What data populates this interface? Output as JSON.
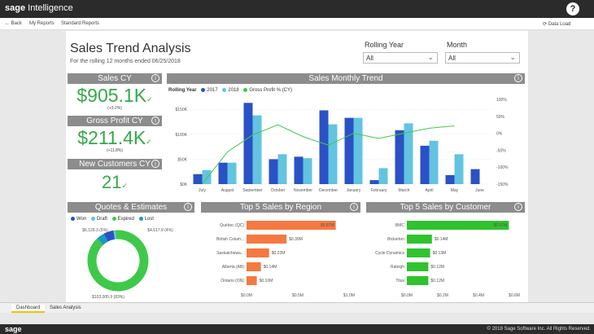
{
  "app": {
    "brand_sage": "sage",
    "brand_product": "Intelligence",
    "help": "?"
  },
  "nav": {
    "back": "← Back",
    "my_reports": "My Reports",
    "standard_reports": "Standard Reports",
    "data_load": "⟳ Data Load"
  },
  "report": {
    "title": "Sales Trend Analysis",
    "subtitle": "For the rolling 12 months ended 06/25/2018"
  },
  "slicers": {
    "rolling_year_label": "Rolling Year",
    "rolling_year_value": "All",
    "month_label": "Month",
    "month_value": "All"
  },
  "kpis": {
    "sales_cy": {
      "title": "Sales CY",
      "value": "$905.1K",
      "change": "(+3.2%)"
    },
    "gross_profit_cy": {
      "title": "Gross Profit CY",
      "value": "$211.4K",
      "change": "(+11.8%)"
    },
    "new_customers_cy": {
      "title": "New Customers CY",
      "value": "21"
    }
  },
  "check": "✓",
  "info": "i",
  "chevron": "⌄",
  "colors": {
    "dark_bar": "#2a51c5",
    "light_bar": "#62c4e0",
    "line": "#3fc94a",
    "orange": "#f57940",
    "green": "#2fc32d",
    "header": "#8c8c8c"
  },
  "monthly_trend": {
    "title": "Sales Monthly Trend",
    "legend_title": "Rolling Year",
    "series_names": [
      "2017",
      "2018",
      "Gross Profit % (CY)"
    ],
    "y_ticks": [
      "$150K",
      "$100K",
      "$50K",
      "$0K"
    ],
    "y2_ticks": [
      "100%",
      "50%",
      "0%",
      "-50%",
      "-100%",
      "-150%"
    ]
  },
  "quotes": {
    "title": "Quotes & Estimates",
    "legend": [
      "Won",
      "Draft",
      "Expired",
      "Lost"
    ],
    "label_top_left": "$6,126.3 (5%)",
    "label_top_right": "$4,617.9 (4%)",
    "label_bottom": "$103,005.9 (83%)"
  },
  "top_region": {
    "title": "Top 5 Sales by Region",
    "x_ticks": [
      "$0.0M",
      "$0.5M",
      "$1.0M"
    ]
  },
  "top_customer": {
    "title": "Top 5 Sales by Customer",
    "x_ticks": [
      "$0.0M",
      "$0.2M",
      "$0.4M",
      "$0.6M"
    ]
  },
  "tabs": [
    "Dashboard",
    "Sales Analysis"
  ],
  "footer": {
    "logo": "sage",
    "copyright": "© 2018 Sage Software Inc. All Rights Reserved."
  },
  "chart_data": [
    {
      "type": "bar",
      "title": "Sales Monthly Trend",
      "categories": [
        "July",
        "August",
        "September",
        "October",
        "November",
        "December",
        "January",
        "February",
        "March",
        "April",
        "May",
        "June"
      ],
      "series": [
        {
          "name": "2017",
          "values": [
            20,
            43,
            163,
            50,
            55,
            148,
            133,
            8,
            108,
            77,
            18,
            30
          ]
        },
        {
          "name": "2018",
          "values": [
            28,
            43,
            138,
            60,
            52,
            120,
            133,
            32,
            122,
            87,
            60,
            0
          ]
        },
        {
          "name": "Gross Profit % (CY)",
          "axis": "right",
          "values": [
            -150,
            -55,
            -5,
            25,
            -10,
            -35,
            0,
            -15,
            0,
            15,
            22,
            40
          ]
        }
      ],
      "ylim": [
        0,
        170
      ],
      "y2lim": [
        -150,
        100
      ],
      "legend": "top-left"
    },
    {
      "type": "pie",
      "title": "Quotes & Estimates",
      "series": [
        {
          "name": "Won",
          "value": 5
        },
        {
          "name": "Draft",
          "value": 1
        },
        {
          "name": "Expired",
          "value": 83
        },
        {
          "name": "Lost",
          "value": 4
        }
      ]
    },
    {
      "type": "bar",
      "orientation": "horizontal",
      "title": "Top 5 Sales by Region",
      "categories": [
        "Québec (QC)",
        "British Colum...",
        "Saskatchewa...",
        "Alberta (AB)",
        "Ontario (ON)"
      ],
      "values": [
        0.87,
        0.39,
        0.22,
        0.14,
        0.1
      ],
      "value_labels": [
        "$0.87M",
        "$0.39M",
        "$0.22M",
        "$0.14M",
        "$0.10M"
      ],
      "xlim": [
        0,
        1.0
      ]
    },
    {
      "type": "bar",
      "orientation": "horizontal",
      "title": "Top 5 Sales by Customer",
      "categories": [
        "BMC",
        "Bickerton",
        "Cycle Dynamics",
        "Raleigh",
        "Titus"
      ],
      "values": [
        0.57,
        0.14,
        0.13,
        0.12,
        0.12
      ],
      "value_labels": [
        "$0.57M",
        "$0.14M",
        "$0.13M",
        "$0.12M",
        "$0.12M"
      ],
      "xlim": [
        0,
        0.6
      ]
    }
  ]
}
